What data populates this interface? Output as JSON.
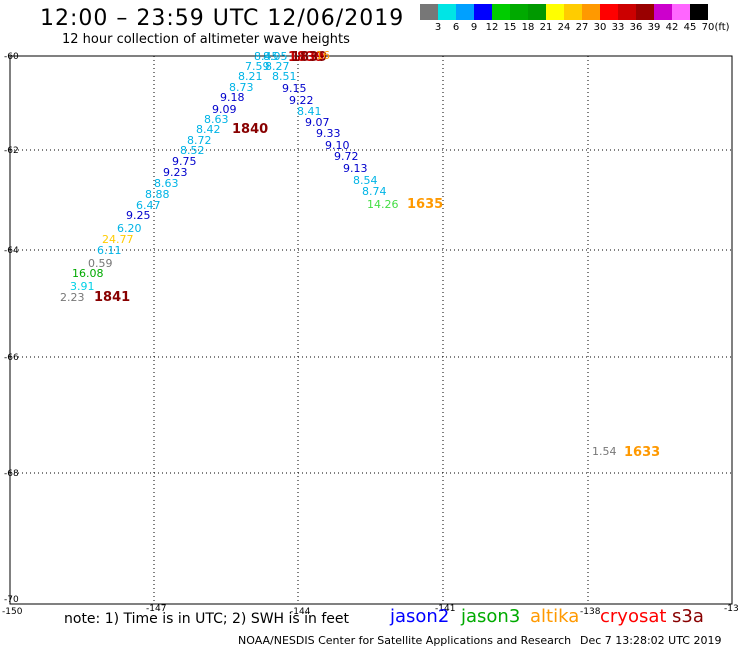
{
  "title": "12:00 – 23:59 UTC 12/06/2019",
  "subtitle": "12 hour collection of altimeter wave heights",
  "legend": {
    "unit": "(ft)",
    "labels": [
      "3",
      "6",
      "9",
      "12",
      "15",
      "18",
      "21",
      "24",
      "27",
      "30",
      "33",
      "36",
      "39",
      "42",
      "45",
      "70"
    ],
    "colors": [
      "#777777",
      "#00e5e5",
      "#00a0ff",
      "#0000ff",
      "#00cc00",
      "#00aa00",
      "#009900",
      "#ffff00",
      "#ffcc00",
      "#ff9900",
      "#ff0000",
      "#cc0000",
      "#990000",
      "#cc00cc",
      "#ff66ff",
      "#000000"
    ]
  },
  "map": {
    "lat_labels": [
      "-60",
      "-62",
      "-64",
      "-66",
      "-68",
      "-70"
    ],
    "lon_labels": [
      "-150",
      "-147",
      "-144",
      "-141",
      "-138",
      "-13"
    ],
    "observations": [
      {
        "text": "8.45",
        "color": "#00b4e6"
      },
      {
        "text": "8.05",
        "color": "#00b4e6"
      },
      {
        "text": "7.59",
        "color": "#00b4e6"
      },
      {
        "text": "8.27",
        "color": "#00b4e6"
      },
      {
        "text": "8.21",
        "color": "#00b4e6"
      },
      {
        "text": "8.51",
        "color": "#00b4e6"
      },
      {
        "text": "8.73",
        "color": "#00b4e6"
      },
      {
        "text": "9.15",
        "color": "#0000cc"
      },
      {
        "text": "9.18",
        "color": "#0000cc"
      },
      {
        "text": "9.22",
        "color": "#0000cc"
      },
      {
        "text": "9.09",
        "color": "#0000cc"
      },
      {
        "text": "8.41",
        "color": "#00b4e6"
      },
      {
        "text": "8.63",
        "color": "#00b4e6"
      },
      {
        "text": "9.07",
        "color": "#0000cc"
      },
      {
        "text": "8.42",
        "color": "#00b4e6"
      },
      {
        "text": "9.33",
        "color": "#0000cc"
      },
      {
        "text": "8.72",
        "color": "#00b4e6"
      },
      {
        "text": "9.10",
        "color": "#0000cc"
      },
      {
        "text": "8.52",
        "color": "#00b4e6"
      },
      {
        "text": "9.72",
        "color": "#0000cc"
      },
      {
        "text": "9.75",
        "color": "#0000cc"
      },
      {
        "text": "9.13",
        "color": "#0000cc"
      },
      {
        "text": "9.23",
        "color": "#0000cc"
      },
      {
        "text": "8.54",
        "color": "#00b4e6"
      },
      {
        "text": "8.63",
        "color": "#00b4e6"
      },
      {
        "text": "8.74",
        "color": "#00b4e6"
      },
      {
        "text": "8.88",
        "color": "#00b4e6"
      },
      {
        "text": "14.26",
        "color": "#44dd44"
      },
      {
        "text": "6.47",
        "color": "#00b4e6"
      },
      {
        "text": "9.25",
        "color": "#0000cc"
      },
      {
        "text": "6.20",
        "color": "#00b4e6"
      },
      {
        "text": "24.77",
        "color": "#ffcc00"
      },
      {
        "text": "6.11",
        "color": "#00b4e6"
      },
      {
        "text": "0.59",
        "color": "#777777"
      },
      {
        "text": "16.08",
        "color": "#00aa00"
      },
      {
        "text": "3.91",
        "color": "#00d0e6"
      },
      {
        "text": "2.23",
        "color": "#777777"
      },
      {
        "text": "1.54",
        "color": "#777777"
      },
      {
        "text": "1635",
        "color": "#ff9900"
      },
      {
        "text": "1840",
        "color": "#880000"
      },
      {
        "text": "1841",
        "color": "#880000"
      },
      {
        "text": "1633",
        "color": "#ff9900"
      },
      {
        "text": "1839",
        "color": "#cc0000"
      },
      {
        "text": "1839",
        "color": "#880000"
      },
      {
        "text": "16",
        "color": "#ff9900"
      }
    ]
  },
  "footer": {
    "note": "note: 1) Time is in UTC; 2) SWH is in feet",
    "satellites": [
      {
        "name": "jason2",
        "color": "#0000ff"
      },
      {
        "name": "jason3",
        "color": "#00aa00"
      },
      {
        "name": "altika",
        "color": "#ff9900"
      },
      {
        "name": "cryosat",
        "color": "#ff0000"
      },
      {
        "name": "s3a",
        "color": "#880000"
      }
    ],
    "credit": "NOAA/NESDIS Center for Satellite Applications and Research",
    "date": "Dec  7 13:28:02 UTC 2019"
  }
}
